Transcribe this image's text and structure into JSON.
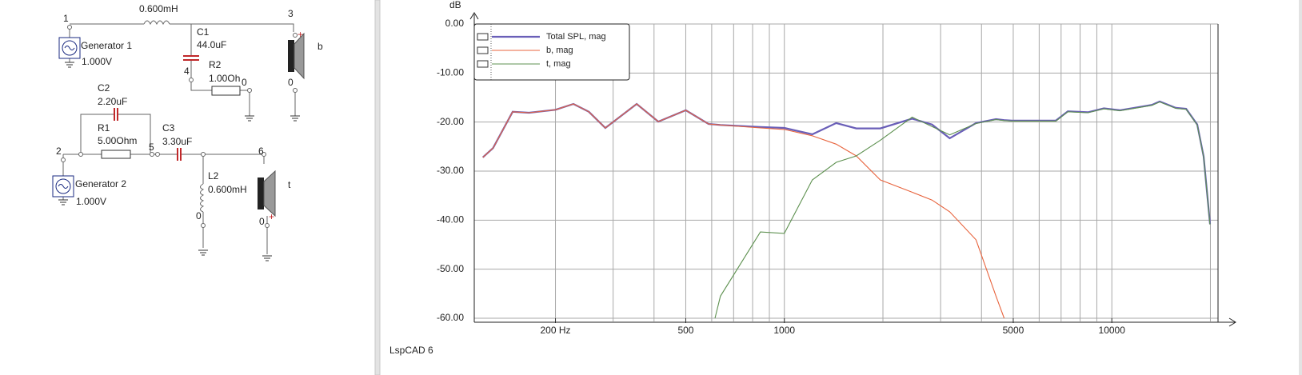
{
  "schematic": {
    "texts": [
      "1",
      "0.600mH",
      "3",
      "Generator 1",
      "1.000V",
      "C1",
      "44.0uF",
      "R2",
      "4",
      "1.00Oh",
      "0",
      "b",
      "0",
      "C2",
      "2.20uF",
      "R1",
      "5.00Ohm",
      "5",
      "C3",
      "3.30uF",
      "2",
      "6",
      "Generator 2",
      "1.000V",
      "L2",
      "0.600mH",
      "0",
      "0",
      "t"
    ]
  },
  "footer": "LspCAD 6",
  "chart_data": {
    "type": "line",
    "ylabel": "dB",
    "xscale": "log",
    "legend": "upper left",
    "grid": true,
    "xlim": [
      113,
      21100
    ],
    "ylim": [
      -60,
      0
    ],
    "xticks": [
      {
        "value": 200,
        "label": "200 Hz"
      },
      500,
      1000,
      5000,
      10000
    ],
    "xgrid": [
      200,
      300,
      400,
      500,
      600,
      700,
      800,
      900,
      1000,
      2000,
      3000,
      4000,
      5000,
      6000,
      7000,
      8000,
      9000,
      10000,
      20000
    ],
    "yticks": [
      {
        "value": 0,
        "label": "0.00"
      },
      {
        "value": -10,
        "label": "-10.00"
      },
      {
        "value": -20,
        "label": "-20.00"
      },
      {
        "value": -30,
        "label": "-30.00"
      },
      {
        "value": -40,
        "label": "-40.00"
      },
      {
        "value": -50,
        "label": "-50.00"
      },
      {
        "value": -60,
        "label": "-60.00"
      }
    ],
    "x": [
      120,
      129,
      148,
      166,
      200,
      227,
      253,
      284,
      354,
      412,
      500,
      587,
      614,
      638,
      845,
      1000,
      1217,
      1440,
      1658,
      1963,
      2455,
      2825,
      3198,
      3849,
      4429,
      4690,
      4957,
      6748,
      7341,
      8450,
      9459,
      10580,
      13246,
      14000,
      15670,
      16860,
      18230,
      19070,
      19950
    ],
    "series": [
      {
        "name": "Total SPL, mag",
        "color": "#6a5fb8",
        "values": [
          -27.2,
          -25.3,
          -17.9,
          -18.1,
          -17.5,
          -16.3,
          -17.9,
          -21.2,
          -16.3,
          -19.9,
          -17.6,
          -20.4,
          -20.5,
          -20.6,
          -21,
          -21.2,
          -22.5,
          -20.2,
          -21.3,
          -21.3,
          -19.3,
          -20.5,
          -23.3,
          -20.2,
          -19.4,
          -19.6,
          -19.7,
          -19.7,
          -17.8,
          -18,
          -17.2,
          -17.6,
          -16.5,
          -15.8,
          -17.1,
          -17.3,
          -20.5,
          -27,
          -40.8
        ]
      },
      {
        "name": "b, mag",
        "color": "#e8653f",
        "values": [
          -27.2,
          -25.3,
          -17.9,
          -18.1,
          -17.5,
          -16.3,
          -17.9,
          -21.2,
          -16.3,
          -19.9,
          -17.6,
          -20.4,
          -20.5,
          -20.6,
          -21.2,
          -21.5,
          -22.8,
          -24.5,
          -26.9,
          -31.8,
          -34.3,
          -35.9,
          -38.3,
          -44,
          -55.5,
          -60,
          null,
          null,
          null,
          null,
          null,
          null,
          null,
          null,
          null,
          null,
          null,
          null,
          null
        ]
      },
      {
        "name": "t, mag",
        "color": "#5e9150",
        "values": [
          null,
          null,
          null,
          null,
          null,
          null,
          null,
          null,
          null,
          null,
          null,
          null,
          -60,
          -55.5,
          -42.4,
          -42.7,
          -31.8,
          -28.2,
          -26.9,
          -23.7,
          -19,
          -20.9,
          -22.6,
          -20.3,
          -19.5,
          -19.7,
          -19.8,
          -19.8,
          -17.9,
          -18.1,
          -17.3,
          -17.7,
          -16.6,
          -15.9,
          -17.2,
          -17.4,
          -20.6,
          -27.1,
          -40.9
        ]
      }
    ]
  }
}
